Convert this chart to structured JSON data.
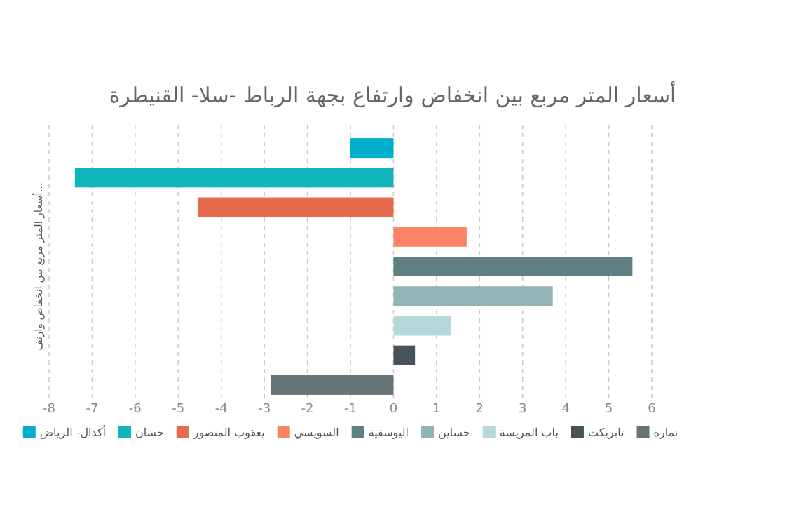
{
  "chart_data": {
    "type": "bar",
    "orientation": "horizontal",
    "title": "أسعار المتر مربع بين انخفاض وارتفاع بجهة الرباط -سلا- القنيطرة",
    "ylabel": "أسعار المتر مربع بين انخفاض وارتف...",
    "categories": [
      null,
      null,
      null,
      null,
      null,
      null,
      null,
      null,
      null
    ],
    "series": [
      {
        "name": "أكدال- الرياض",
        "color": "#00afc9",
        "values": [
          -1,
          null,
          null,
          null,
          null,
          null,
          null,
          null,
          null
        ]
      },
      {
        "name": "حسان",
        "color": "#10b4ba",
        "values": [
          null,
          -7.4,
          null,
          null,
          null,
          null,
          null,
          null,
          null
        ]
      },
      {
        "name": "يعقوب المنصور",
        "color": "#e86a4d",
        "values": [
          null,
          null,
          -4.55,
          null,
          null,
          null,
          null,
          null,
          null
        ]
      },
      {
        "name": "السويسي",
        "color": "#fb8466",
        "values": [
          null,
          null,
          null,
          1.7,
          null,
          null,
          null,
          null,
          null
        ]
      },
      {
        "name": "اليوسفية",
        "color": "#607f84",
        "values": [
          null,
          null,
          null,
          null,
          5.55,
          null,
          null,
          null,
          null
        ]
      },
      {
        "name": "حساين",
        "color": "#94b3b7",
        "values": [
          null,
          null,
          null,
          null,
          null,
          3.7,
          null,
          null,
          null
        ]
      },
      {
        "name": "باب المريسة",
        "color": "#b7d7db",
        "values": [
          null,
          null,
          null,
          null,
          null,
          null,
          1.33,
          null,
          null
        ]
      },
      {
        "name": "تابريكت",
        "color": "#465459",
        "values": [
          null,
          null,
          null,
          null,
          null,
          null,
          null,
          0.5,
          null
        ]
      },
      {
        "name": "تمارة",
        "color": "#667377",
        "values": [
          null,
          null,
          null,
          null,
          null,
          null,
          null,
          null,
          -2.85
        ]
      }
    ],
    "xlim": [
      -8,
      6
    ],
    "xticks": [
      -8,
      -7,
      -6,
      -5,
      -4,
      -3,
      -2,
      -1,
      0,
      1,
      2,
      3,
      4,
      5,
      6
    ],
    "grid": "x",
    "legend": "bottom"
  }
}
